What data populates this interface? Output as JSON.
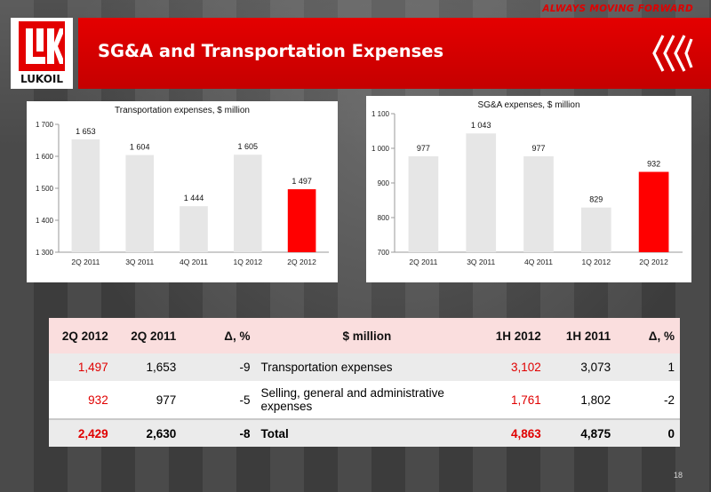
{
  "header": {
    "tagline": "ALWAYS MOVING FORWARD",
    "title": "SG&A and Transportation Expenses",
    "logo_text": "LUKOIL"
  },
  "colors": {
    "brand_red": "#e00000",
    "bar_gray": "#e6e6e6",
    "bar_highlight": "#ff0000"
  },
  "chart_data": [
    {
      "type": "bar",
      "title": "Transportation expenses, $ million",
      "categories": [
        "2Q 2011",
        "3Q 2011",
        "4Q 2011",
        "1Q 2012",
        "2Q 2012"
      ],
      "values": [
        1653,
        1604,
        1444,
        1605,
        1497
      ],
      "data_labels": [
        "1 653",
        "1 604",
        "1 444",
        "1 605",
        "1 497"
      ],
      "highlight_index": 4,
      "ylim": [
        1300,
        1700
      ],
      "yticks": [
        1300,
        1400,
        1500,
        1600,
        1700
      ],
      "ytick_labels": [
        "1 300",
        "1 400",
        "1 500",
        "1 600",
        "1 700"
      ],
      "grid": false,
      "legend": "none"
    },
    {
      "type": "bar",
      "title": "SG&A expenses, $ million",
      "categories": [
        "2Q 2011",
        "3Q 2011",
        "4Q 2011",
        "1Q 2012",
        "2Q 2012"
      ],
      "values": [
        977,
        1043,
        977,
        829,
        932
      ],
      "data_labels": [
        "977",
        "1 043",
        "977",
        "829",
        "932"
      ],
      "highlight_index": 4,
      "ylim": [
        700,
        1100
      ],
      "yticks": [
        700,
        800,
        900,
        1000,
        1100
      ],
      "ytick_labels": [
        "700",
        "800",
        "900",
        "1 000",
        "1 100"
      ],
      "grid": false,
      "legend": "none"
    }
  ],
  "table": {
    "headers": [
      "2Q 2012",
      "2Q 2011",
      "Δ, %",
      "$ million",
      "1H 2012",
      "1H 2011",
      "Δ, %"
    ],
    "rows": [
      [
        "1,497",
        "1,653",
        "-9",
        "Transportation expenses",
        "3,102",
        "3,073",
        "1"
      ],
      [
        "932",
        "977",
        "-5",
        "Selling, general and administrative expenses",
        "1,761",
        "1,802",
        "-2"
      ],
      [
        "2,429",
        "2,630",
        "-8",
        "Total",
        "4,863",
        "4,875",
        "0"
      ]
    ]
  },
  "footer": {
    "page_number": "18"
  }
}
